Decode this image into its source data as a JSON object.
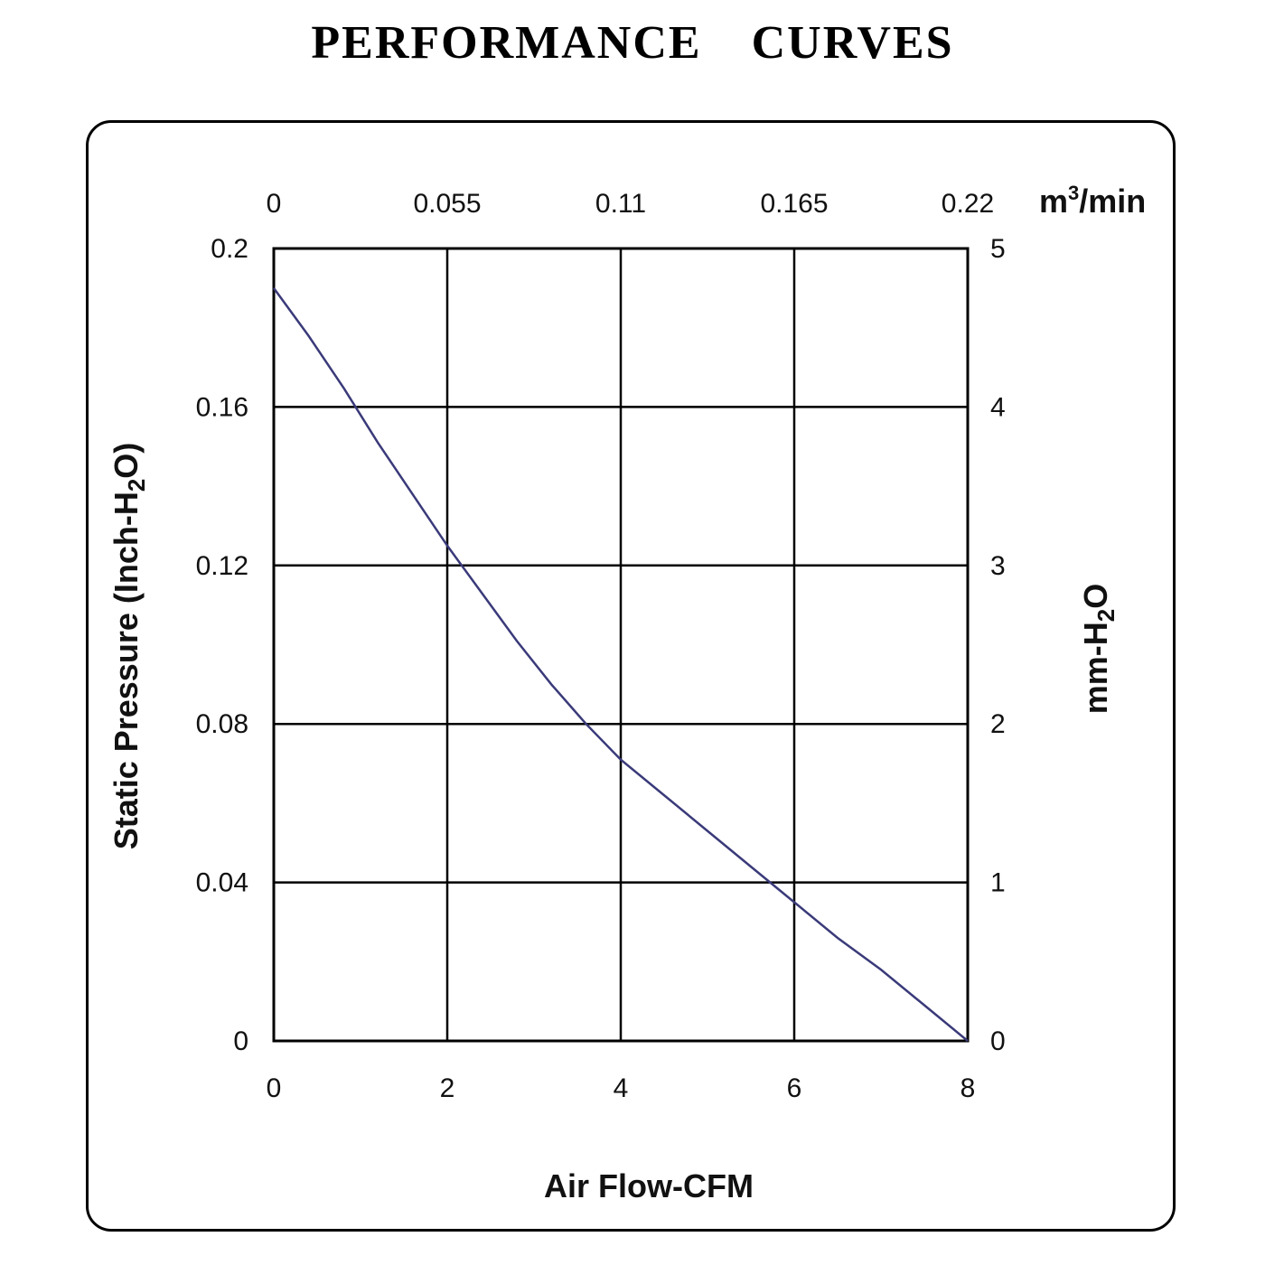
{
  "chart_data": {
    "type": "line",
    "title": "PERFORMANCE    CURVES",
    "xlabel": "Air Flow-CFM",
    "ylabel": "Static Pressure (Inch-H2O)",
    "ylabel_parts": [
      "Static Pressure (Inch-H",
      "2",
      "O)"
    ],
    "x2label_parts": [
      "m",
      "3",
      "/min"
    ],
    "y2label_parts": [
      "mm-H",
      "2",
      "O"
    ],
    "xlim": [
      0,
      8
    ],
    "ylim": [
      0,
      0.2
    ],
    "x_ticks": [
      "0",
      "2",
      "4",
      "6",
      "8"
    ],
    "y_ticks": [
      "0",
      "0.04",
      "0.08",
      "0.12",
      "0.16",
      "0.2"
    ],
    "x2_ticks": [
      "0",
      "0.055",
      "0.11",
      "0.165",
      "0.22"
    ],
    "y2_ticks": [
      "0",
      "1",
      "2",
      "3",
      "4",
      "5"
    ],
    "grid": true,
    "line_color": "#3a3a7a",
    "series": [
      {
        "x": [
          0,
          0.4,
          0.8,
          1.2,
          1.6,
          2.0,
          2.4,
          2.8,
          3.2,
          3.6,
          4.0,
          4.5,
          5.0,
          5.5,
          6.0,
          6.5,
          7.0,
          7.5,
          8.0
        ],
        "values": [
          0.19,
          0.178,
          0.165,
          0.151,
          0.138,
          0.125,
          0.113,
          0.101,
          0.09,
          0.08,
          0.071,
          0.062,
          0.053,
          0.044,
          0.035,
          0.026,
          0.018,
          0.009,
          0.0
        ]
      }
    ]
  }
}
